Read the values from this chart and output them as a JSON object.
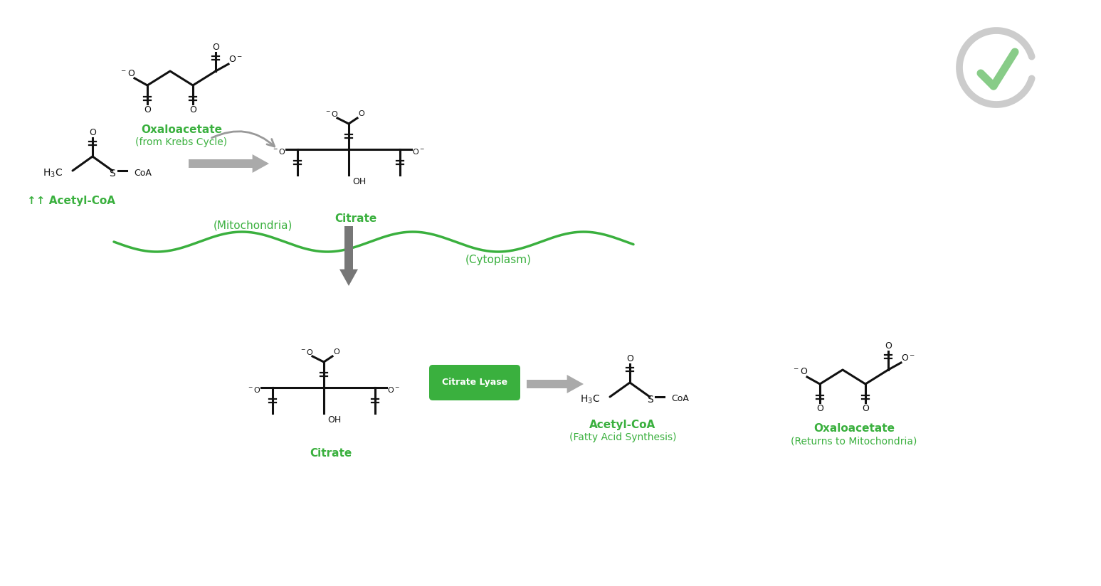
{
  "bg_color": "#ffffff",
  "green_color": "#3ab03e",
  "gray_arrow": "#aaaaaa",
  "gray_dark": "#888888",
  "black_color": "#111111",
  "oxaloacetate_label": "Oxaloacetate",
  "oxaloacetate_sub": "(from Krebs Cycle)",
  "acetyl_coa_label": "↑↑ Acetyl-CoA",
  "citrate_label_top": "Citrate",
  "mitochondria_label": "(Mitochondria)",
  "cytoplasm_label": "(Cytoplasm)",
  "citrate_label_bottom": "Citrate",
  "citrate_lyase_label": "Citrate Lyase",
  "acetyl_coa_bottom_label": "Acetyl-CoA",
  "acetyl_coa_bottom_sub": "(Fatty Acid Synthesis)",
  "oxaloacetate_bottom_label": "Oxaloacetate",
  "oxaloacetate_bottom_sub": "(Returns to Mitochondria)"
}
